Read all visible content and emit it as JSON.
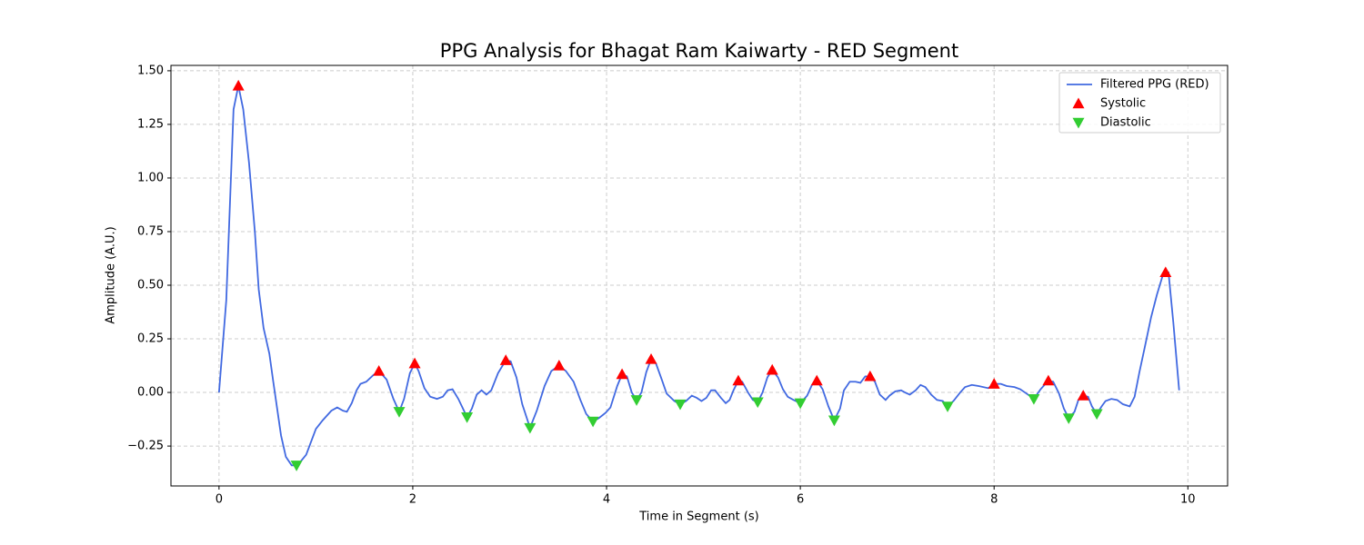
{
  "chart_data": {
    "type": "line",
    "title": "PPG Analysis for Bhagat Ram Kaiwarty - RED Segment",
    "x_label": "Time in Segment (s)",
    "y_label": "Amplitude (A.U.)",
    "xlim": [
      -0.496,
      10.41
    ],
    "ylim": [
      -0.436,
      1.525
    ],
    "xticks": [
      0,
      2,
      4,
      6,
      8,
      10
    ],
    "yticks": [
      {
        "value": -0.25,
        "label": "−0.25"
      },
      {
        "value": 0,
        "label": "0.00"
      },
      0.25,
      {
        "value": 0.5,
        "label": "0.50"
      },
      0.75,
      {
        "value": 1,
        "label": "1.00"
      },
      1.25,
      {
        "value": 1.5,
        "label": "1.50"
      }
    ],
    "grid": true,
    "legend": "upper right",
    "series": [
      {
        "name": "Filtered PPG (RED)",
        "type": "line",
        "color": "#4169e1",
        "x": [
          0,
          0.075,
          0.15,
          0.2,
          0.25,
          0.31,
          0.37,
          0.41,
          0.46,
          0.52,
          0.56,
          0.64,
          0.69,
          0.75,
          0.81,
          0.9,
          1.0,
          1.07,
          1.16,
          1.22,
          1.28,
          1.32,
          1.37,
          1.42,
          1.46,
          1.52,
          1.59,
          1.65,
          1.73,
          1.8,
          1.86,
          1.91,
          1.97,
          2.02,
          2.06,
          2.12,
          2.18,
          2.25,
          2.31,
          2.36,
          2.41,
          2.47,
          2.56,
          2.61,
          2.66,
          2.71,
          2.76,
          2.81,
          2.88,
          2.96,
          3.01,
          3.07,
          3.13,
          3.21,
          3.28,
          3.36,
          3.43,
          3.51,
          3.58,
          3.66,
          3.73,
          3.79,
          3.86,
          3.92,
          3.99,
          4.04,
          4.11,
          4.16,
          4.21,
          4.26,
          4.31,
          4.36,
          4.41,
          4.46,
          4.51,
          4.57,
          4.62,
          4.7,
          4.76,
          4.82,
          4.88,
          4.93,
          4.98,
          5.03,
          5.08,
          5.12,
          5.18,
          5.23,
          5.27,
          5.31,
          5.36,
          5.4,
          5.46,
          5.51,
          5.56,
          5.61,
          5.66,
          5.71,
          5.77,
          5.82,
          5.87,
          5.93,
          6.0,
          6.07,
          6.12,
          6.17,
          6.23,
          6.29,
          6.35,
          6.41,
          6.45,
          6.51,
          6.57,
          6.62,
          6.67,
          6.72,
          6.77,
          6.82,
          6.88,
          6.92,
          6.98,
          7.04,
          7.08,
          7.13,
          7.19,
          7.24,
          7.29,
          7.35,
          7.41,
          7.47,
          7.52,
          7.58,
          7.65,
          7.7,
          7.77,
          7.84,
          7.94,
          8.0,
          8.07,
          8.13,
          8.21,
          8.27,
          8.35,
          8.41,
          8.48,
          8.56,
          8.61,
          8.67,
          8.72,
          8.77,
          8.83,
          8.87,
          8.92,
          8.97,
          9.01,
          9.06,
          9.11,
          9.15,
          9.21,
          9.27,
          9.33,
          9.4,
          9.45,
          9.5,
          9.55,
          9.62,
          9.68,
          9.75,
          9.8,
          9.85,
          9.91
        ],
        "values": [
          0,
          0.43,
          1.32,
          1.43,
          1.32,
          1.07,
          0.75,
          0.48,
          0.3,
          0.18,
          0.05,
          -0.2,
          -0.3,
          -0.34,
          -0.34,
          -0.29,
          -0.17,
          -0.13,
          -0.085,
          -0.07,
          -0.085,
          -0.09,
          -0.05,
          0.01,
          0.04,
          0.05,
          0.08,
          0.1,
          0.06,
          -0.03,
          -0.09,
          -0.03,
          0.09,
          0.135,
          0.1,
          0.02,
          -0.02,
          -0.03,
          -0.02,
          0.01,
          0.015,
          -0.03,
          -0.115,
          -0.075,
          -0.01,
          0.01,
          -0.01,
          0.01,
          0.09,
          0.15,
          0.145,
          0.07,
          -0.055,
          -0.165,
          -0.085,
          0.03,
          0.1,
          0.125,
          0.1,
          0.05,
          -0.035,
          -0.1,
          -0.135,
          -0.12,
          -0.095,
          -0.07,
          0.03,
          0.085,
          0.075,
          0,
          -0.035,
          0,
          0.095,
          0.155,
          0.135,
          0.06,
          -0.005,
          -0.04,
          -0.055,
          -0.04,
          -0.015,
          -0.025,
          -0.04,
          -0.025,
          0.01,
          0.01,
          -0.025,
          -0.05,
          -0.035,
          0.01,
          0.055,
          0.05,
          0,
          -0.035,
          -0.045,
          0,
          0.07,
          0.105,
          0.07,
          0.015,
          -0.02,
          -0.035,
          -0.05,
          -0.015,
          0.035,
          0.055,
          0.015,
          -0.065,
          -0.13,
          -0.075,
          0.01,
          0.05,
          0.05,
          0.045,
          0.075,
          0.075,
          0.05,
          -0.01,
          -0.035,
          -0.015,
          0.005,
          0.01,
          0,
          -0.01,
          0.01,
          0.035,
          0.025,
          -0.01,
          -0.035,
          -0.04,
          -0.065,
          -0.04,
          0,
          0.025,
          0.035,
          0.03,
          0.02,
          0.04,
          0.04,
          0.03,
          0.025,
          0.015,
          -0.01,
          -0.03,
          0.015,
          0.055,
          0.05,
          -0.005,
          -0.075,
          -0.12,
          -0.09,
          -0.035,
          -0.015,
          -0.02,
          -0.065,
          -0.1,
          -0.065,
          -0.04,
          -0.03,
          -0.035,
          -0.055,
          -0.065,
          -0.02,
          0.095,
          0.2,
          0.35,
          0.455,
          0.56,
          0.56,
          0.325,
          0.01
        ]
      },
      {
        "name": "Systolic",
        "type": "scatter",
        "marker": "triangle-up",
        "color": "#ff0000",
        "x": [
          0.2,
          1.65,
          2.02,
          2.96,
          3.51,
          4.16,
          4.46,
          5.36,
          5.71,
          6.17,
          6.72,
          8.0,
          8.56,
          8.92,
          9.77
        ],
        "values": [
          1.43,
          0.1,
          0.135,
          0.15,
          0.125,
          0.085,
          0.155,
          0.055,
          0.105,
          0.055,
          0.075,
          0.04,
          0.055,
          -0.015,
          0.56
        ]
      },
      {
        "name": "Diastolic",
        "type": "scatter",
        "marker": "triangle-down",
        "color": "#32cd32",
        "x": [
          0.8,
          1.86,
          2.56,
          3.21,
          3.86,
          4.31,
          4.76,
          5.56,
          6.0,
          6.35,
          7.52,
          8.41,
          8.77,
          9.06
        ],
        "values": [
          -0.34,
          -0.09,
          -0.115,
          -0.165,
          -0.135,
          -0.035,
          -0.055,
          -0.045,
          -0.05,
          -0.13,
          -0.065,
          -0.03,
          -0.12,
          -0.1
        ]
      }
    ]
  }
}
